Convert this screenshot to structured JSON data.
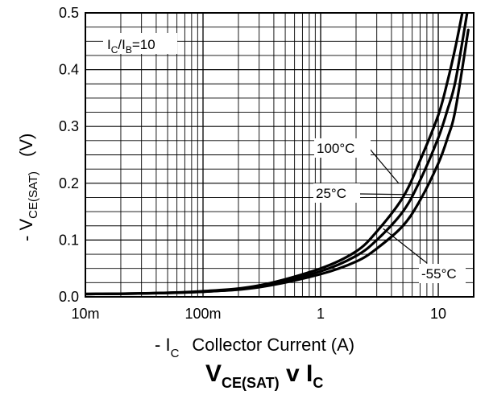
{
  "chart_data": {
    "type": "line",
    "title": {
      "main": "V",
      "main_sub": "CE(SAT)",
      "mid": " v I",
      "end_sub": "C"
    },
    "xlabel": {
      "prefix": "- I",
      "prefix_sub": "C",
      "text": "Collector Current (A)"
    },
    "ylabel": {
      "prefix": "- V",
      "prefix_sub": "CE(SAT)",
      "unit": "(V)"
    },
    "x_scale": "log",
    "xlim": [
      0.01,
      20
    ],
    "ylim": [
      0,
      0.5
    ],
    "grid": true,
    "x_tick_labels": [
      {
        "value": 0.01,
        "label": "10m"
      },
      {
        "value": 0.1,
        "label": "100m"
      },
      {
        "value": 1,
        "label": "1"
      },
      {
        "value": 10,
        "label": "10"
      }
    ],
    "y_tick_labels": [
      {
        "value": 0.0,
        "label": "0.0"
      },
      {
        "value": 0.1,
        "label": "0.1"
      },
      {
        "value": 0.2,
        "label": "0.2"
      },
      {
        "value": 0.3,
        "label": "0.3"
      },
      {
        "value": 0.4,
        "label": "0.4"
      },
      {
        "value": 0.5,
        "label": "0.5"
      }
    ],
    "condition_label": {
      "pre": "I",
      "sub1": "C",
      "mid": "/I",
      "sub2": "B",
      "post": "=10"
    },
    "series": [
      {
        "name": "100°C",
        "x": [
          0.01,
          0.03,
          0.1,
          0.3,
          1,
          2,
          3,
          5,
          7,
          10,
          12,
          14,
          16
        ],
        "y": [
          0.005,
          0.006,
          0.01,
          0.02,
          0.05,
          0.08,
          0.115,
          0.175,
          0.24,
          0.32,
          0.38,
          0.44,
          0.5
        ]
      },
      {
        "name": "25°C",
        "x": [
          0.01,
          0.03,
          0.1,
          0.3,
          1,
          2,
          3,
          5,
          7,
          10,
          12,
          14,
          17.6
        ],
        "y": [
          0.005,
          0.006,
          0.009,
          0.018,
          0.045,
          0.072,
          0.1,
          0.15,
          0.205,
          0.28,
          0.33,
          0.38,
          0.5
        ]
      },
      {
        "name": "-55°C",
        "x": [
          0.01,
          0.03,
          0.1,
          0.3,
          1,
          2,
          3,
          5,
          7,
          10,
          12,
          14,
          18
        ],
        "y": [
          0.005,
          0.006,
          0.009,
          0.017,
          0.04,
          0.062,
          0.085,
          0.125,
          0.17,
          0.235,
          0.28,
          0.33,
          0.47
        ]
      }
    ],
    "annotations": [
      {
        "series": "100°C",
        "label": "100°C",
        "at_x": 4.6,
        "at_y": 0.2
      },
      {
        "series": "25°C",
        "label": "25°C",
        "at_x": 6.1,
        "at_y": 0.18
      },
      {
        "series": "-55°C",
        "label": "-55°C",
        "at_x": 3.4,
        "at_y": 0.12
      }
    ]
  }
}
